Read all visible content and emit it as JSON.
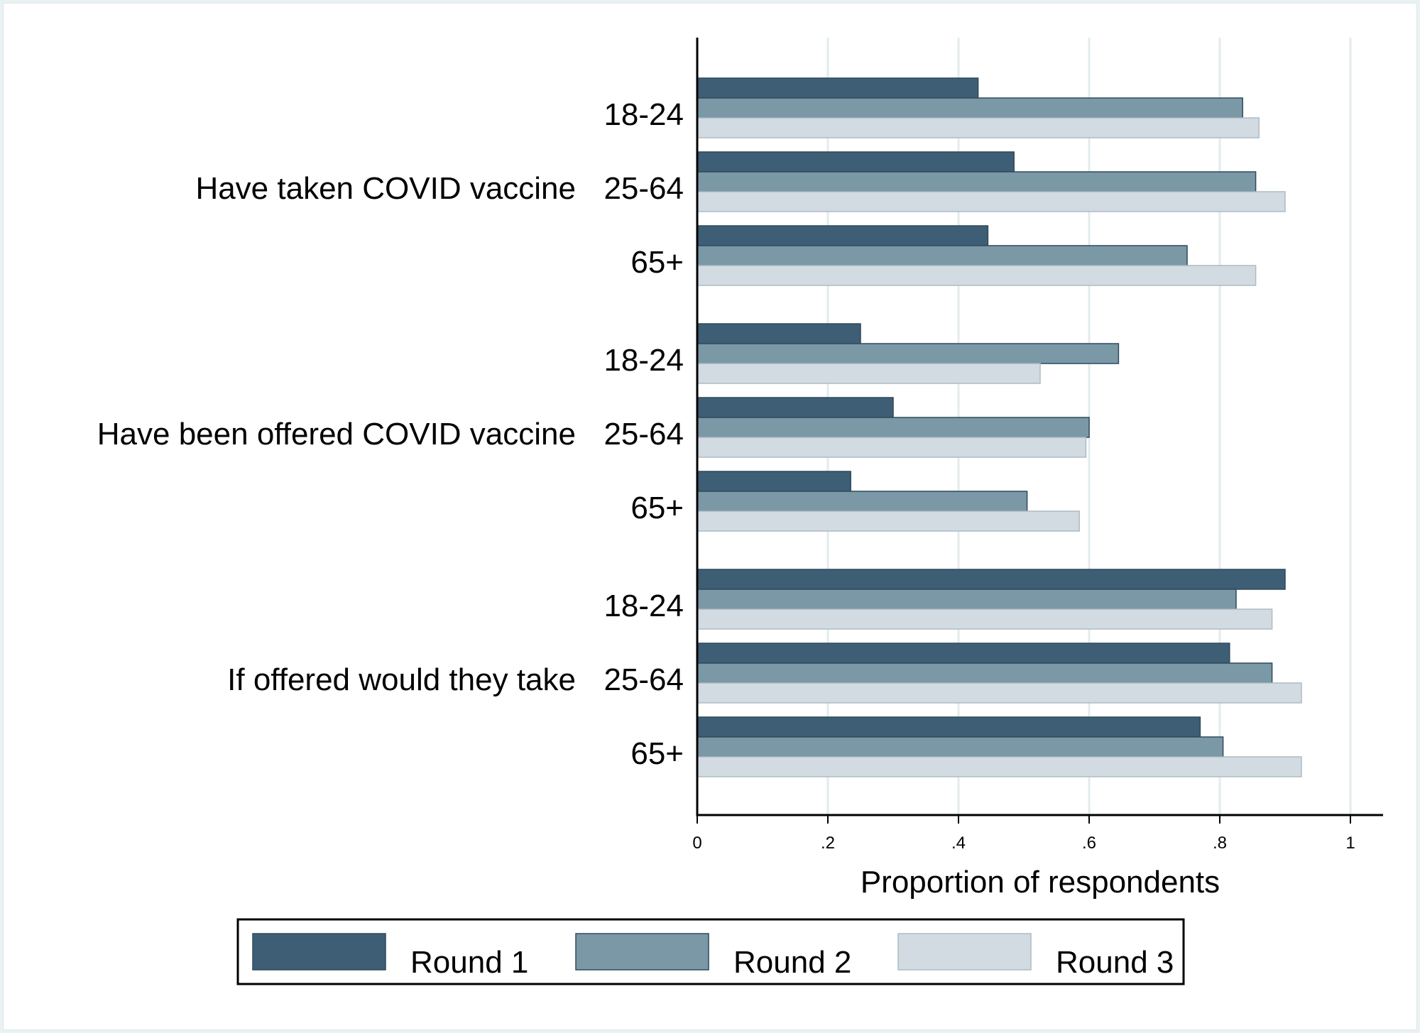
{
  "chart_data": {
    "type": "bar",
    "orientation": "horizontal",
    "groups": [
      {
        "label": "Have taken COVID vaccine",
        "categories": [
          "18-24",
          "25-64",
          "65+"
        ],
        "values": {
          "Round 1": [
            0.43,
            0.485,
            0.445
          ],
          "Round 2": [
            0.835,
            0.855,
            0.75
          ],
          "Round 3": [
            0.86,
            0.9,
            0.855
          ]
        }
      },
      {
        "label": "Have been offered COVID vaccine",
        "categories": [
          "18-24",
          "25-64",
          "65+"
        ],
        "values": {
          "Round 1": [
            0.25,
            0.3,
            0.235
          ],
          "Round 2": [
            0.645,
            0.6,
            0.505
          ],
          "Round 3": [
            0.525,
            0.595,
            0.585
          ]
        }
      },
      {
        "label": "If offered would they take",
        "categories": [
          "18-24",
          "25-64",
          "65+"
        ],
        "values": {
          "Round 1": [
            0.9,
            0.815,
            0.77
          ],
          "Round 2": [
            0.825,
            0.88,
            0.805
          ],
          "Round 3": [
            0.88,
            0.925,
            0.925
          ]
        }
      }
    ],
    "series": [
      {
        "name": "Round 1",
        "color": "#3e5e75"
      },
      {
        "name": "Round 2",
        "color": "#7b98a7"
      },
      {
        "name": "Round 3",
        "color": "#d2dbe1"
      }
    ],
    "xlabel": "Proportion of respondents",
    "xlim": [
      0,
      1.05
    ],
    "xticks": [
      0,
      0.2,
      0.4,
      0.6,
      0.8,
      1
    ],
    "xtick_labels": [
      "0",
      ".2",
      ".4",
      ".6",
      ".8",
      "1"
    ],
    "grid": true,
    "legend_position": "bottom"
  }
}
